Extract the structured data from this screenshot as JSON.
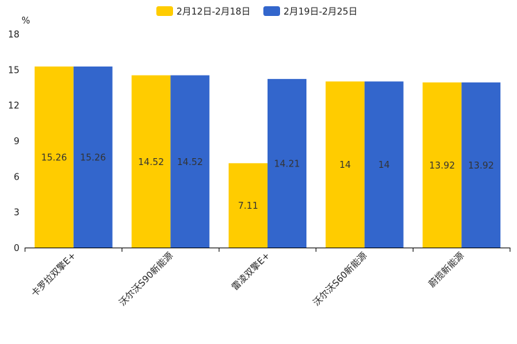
{
  "chart_data": {
    "type": "bar",
    "title": "",
    "xlabel": "",
    "ylabel": "%",
    "ylim": [
      0,
      18
    ],
    "yticks": [
      0,
      3,
      6,
      9,
      12,
      15,
      18
    ],
    "grid": false,
    "legend_position": "top-center",
    "categories": [
      "卡罗拉双擎E+",
      "沃尔沃S90新能源",
      "雷凌双擎E+",
      "沃尔沃S60新能源",
      "蔚揽新能源"
    ],
    "series": [
      {
        "name": "2月12日-2月18日",
        "color": "#FFCC00",
        "values": [
          15.26,
          14.52,
          7.11,
          14,
          13.92
        ],
        "labels": [
          "15.26",
          "14.52",
          "7.11",
          "14",
          "13.92"
        ]
      },
      {
        "name": "2月19日-2月25日",
        "color": "#3366CC",
        "values": [
          15.26,
          14.52,
          14.21,
          14,
          13.92
        ],
        "labels": [
          "15.26",
          "14.52",
          "14.21",
          "14",
          "13.92"
        ]
      }
    ]
  }
}
